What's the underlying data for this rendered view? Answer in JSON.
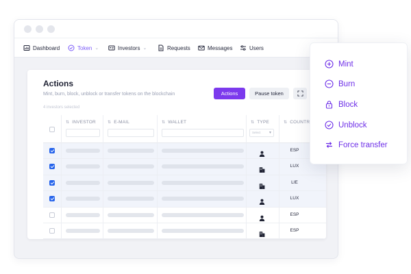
{
  "nav": {
    "items": [
      {
        "label": "Dashboard",
        "icon": "dashboard-icon"
      },
      {
        "label": "Token",
        "icon": "token-icon",
        "active": true
      },
      {
        "label": "Investors",
        "icon": "id-card-icon"
      },
      {
        "label": "Requests",
        "icon": "document-icon"
      },
      {
        "label": "Messages",
        "icon": "mail-icon"
      },
      {
        "label": "Users",
        "icon": "sliders-icon"
      }
    ]
  },
  "actions": {
    "title": "Actions",
    "subtitle": "Mint, burn, block, unblock or transfer tokens on the blockchain",
    "selected": "4 investors selected",
    "primary_button": "Actions",
    "secondary_button": "Pause token",
    "expand_icon": "expand-icon"
  },
  "table": {
    "columns": [
      "INVESTOR",
      "E-MAIL",
      "WALLET",
      "TYPE",
      "COUNTRY"
    ],
    "type_filter_placeholder": "Select",
    "rows": [
      {
        "selected": true,
        "type": "person",
        "country": "ESP"
      },
      {
        "selected": true,
        "type": "entity",
        "country": "LUX"
      },
      {
        "selected": true,
        "type": "entity",
        "country": "LIE"
      },
      {
        "selected": true,
        "type": "person",
        "country": "LUX"
      },
      {
        "selected": false,
        "type": "person",
        "country": "ESP"
      },
      {
        "selected": false,
        "type": "entity",
        "country": "ESP"
      }
    ]
  },
  "menu": {
    "items": [
      {
        "label": "Mint",
        "icon": "plus-circle-icon"
      },
      {
        "label": "Burn",
        "icon": "minus-circle-icon"
      },
      {
        "label": "Block",
        "icon": "lock-icon"
      },
      {
        "label": "Unblock",
        "icon": "check-circle-icon"
      },
      {
        "label": "Force transfer",
        "icon": "transfer-arrows-icon"
      }
    ]
  },
  "colors": {
    "accent": "#7c3aed",
    "menu_text": "#6d2ee8",
    "checkbox": "#2563eb",
    "selected_row": "#f1f4fb"
  }
}
